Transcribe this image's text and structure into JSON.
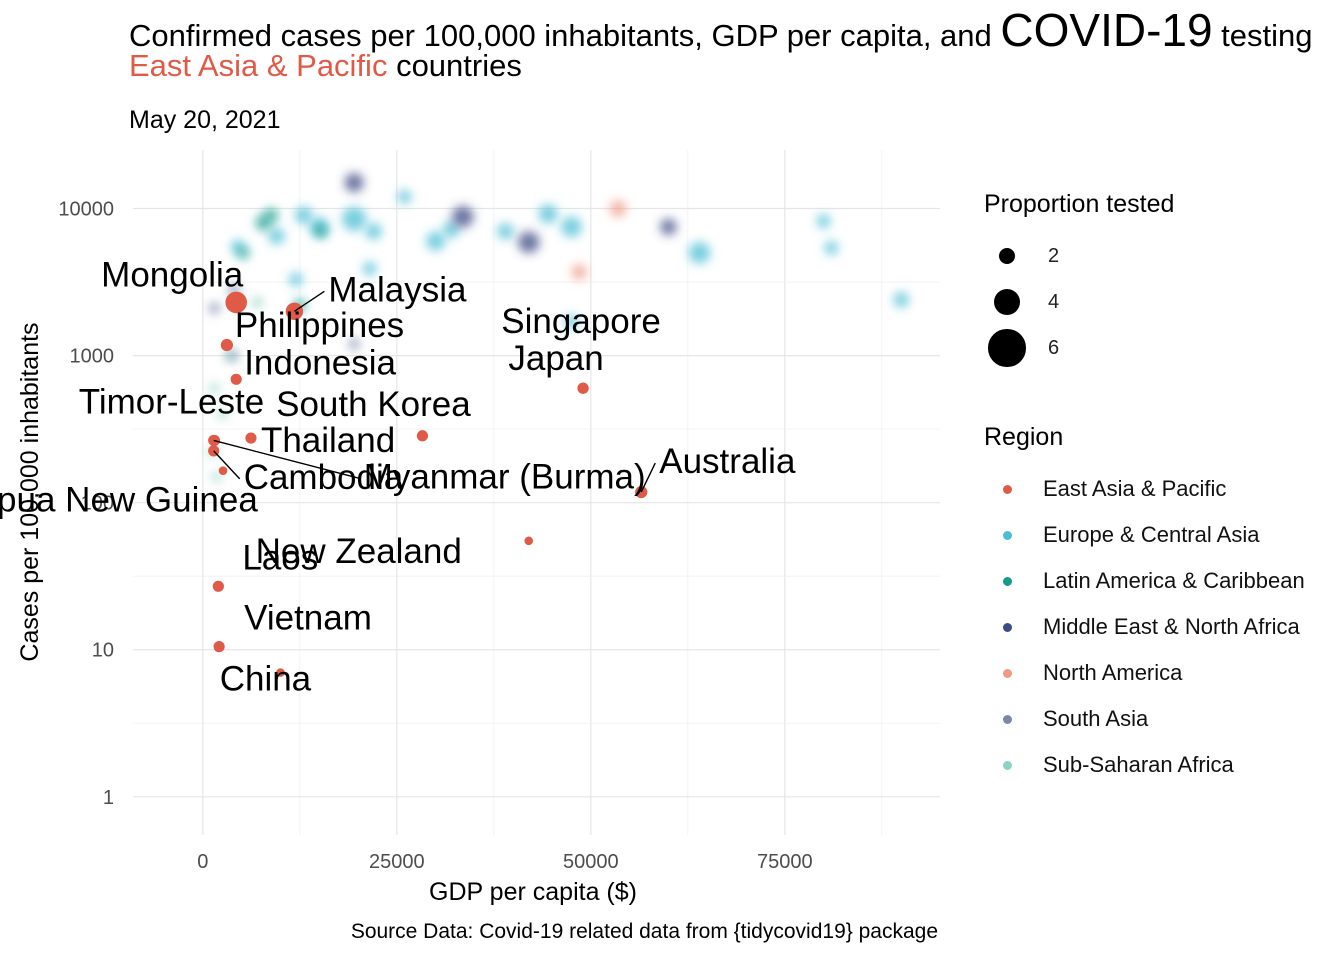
{
  "title": {
    "line1_a": "Confirmed cases per 100,000 inhabitants, GDP per capita, and ",
    "line1_big": "COVID-19",
    "line1_b": " testing",
    "line2_accent": "East Asia & Pacific",
    "line2_rest": " countries"
  },
  "subtitle": "May 20, 2021",
  "caption": "Source Data: Covid-19 related data from {tidycovid19} package",
  "legend": {
    "size_title": "Proportion tested",
    "sizes": [
      {
        "label": "2",
        "value": 2
      },
      {
        "label": "4",
        "value": 4
      },
      {
        "label": "6",
        "value": 6
      }
    ],
    "region_title": "Region",
    "regions": [
      {
        "label": "East Asia & Pacific",
        "color": "#e05b47"
      },
      {
        "label": "Europe & Central Asia",
        "color": "#4dbdd4"
      },
      {
        "label": "Latin America & Caribbean",
        "color": "#159b8c"
      },
      {
        "label": "Middle East & North Africa",
        "color": "#3c4b84"
      },
      {
        "label": "North America",
        "color": "#ee9a84"
      },
      {
        "label": "South Asia",
        "color": "#7b86aa"
      },
      {
        "label": "Sub-Saharan Africa",
        "color": "#8fd2c3"
      }
    ]
  },
  "chart_data": {
    "type": "scatter",
    "xlabel": "GDP per capita ($)",
    "ylabel": "Cases per 100,000 inhabitants",
    "x_scale": "linear",
    "y_scale": "log10",
    "xlim": [
      -9000,
      95000
    ],
    "ylim": [
      0.55,
      25000
    ],
    "x_ticks": [
      0,
      25000,
      50000,
      75000
    ],
    "x_tick_labels": [
      "0",
      "25000",
      "50000",
      "75000"
    ],
    "y_ticks": [
      1,
      10,
      100,
      1000,
      10000
    ],
    "y_tick_labels": [
      "1",
      "10",
      "100",
      "1000",
      "10000"
    ],
    "grid": true,
    "legend_position": "right",
    "highlight_region": "East Asia & Pacific",
    "highlighted": [
      {
        "name": "Mongolia",
        "x": 4300,
        "y": 2300,
        "tested": 3.0
      },
      {
        "name": "Malaysia",
        "x": 11800,
        "y": 2000,
        "tested": 2.2
      },
      {
        "name": "Philippines",
        "x": 3100,
        "y": 1180,
        "tested": 1.2
      },
      {
        "name": "Indonesia",
        "x": 4300,
        "y": 690,
        "tested": 1.0
      },
      {
        "name": "Singapore",
        "x": 49000,
        "y": 600,
        "tested": 1.0
      },
      {
        "name": "Japan",
        "x": 49000,
        "y": 600,
        "tested": 1.0
      },
      {
        "name": "South Korea",
        "x": 28300,
        "y": 285,
        "tested": 1.0
      },
      {
        "name": "Timor-Leste",
        "x": 1500,
        "y": 265,
        "tested": 1.0
      },
      {
        "name": "Thailand",
        "x": 6200,
        "y": 275,
        "tested": 1.0
      },
      {
        "name": "Cambodia",
        "x": 1400,
        "y": 225,
        "tested": 1.0
      },
      {
        "name": "Myanmar (Burma)",
        "x": 1400,
        "y": 265,
        "tested": 1.0
      },
      {
        "name": "Papua New Guinea",
        "x": 2600,
        "y": 165,
        "tested": 0.5
      },
      {
        "name": "New Zealand",
        "x": 42000,
        "y": 55,
        "tested": 0.5
      },
      {
        "name": "Australia",
        "x": 56500,
        "y": 118,
        "tested": 1.2
      },
      {
        "name": "Laos",
        "x": 2000,
        "y": 27,
        "tested": 1.0
      },
      {
        "name": "Vietnam",
        "x": 2100,
        "y": 10.5,
        "tested": 1.0
      },
      {
        "name": "China",
        "x": 10000,
        "y": 7,
        "tested": 0.5
      }
    ],
    "background": [
      {
        "region": "Europe & Central Asia",
        "x": 4500,
        "y": 5500,
        "tested": 1.5
      },
      {
        "region": "Europe & Central Asia",
        "x": 9500,
        "y": 6500,
        "tested": 2.0
      },
      {
        "region": "Europe & Central Asia",
        "x": 13000,
        "y": 9000,
        "tested": 2.2
      },
      {
        "region": "Europe & Central Asia",
        "x": 15000,
        "y": 7500,
        "tested": 2.5
      },
      {
        "region": "Europe & Central Asia",
        "x": 19500,
        "y": 8500,
        "tested": 3.5
      },
      {
        "region": "Europe & Central Asia",
        "x": 22000,
        "y": 7000,
        "tested": 2.0
      },
      {
        "region": "Europe & Central Asia",
        "x": 26000,
        "y": 12000,
        "tested": 1.5
      },
      {
        "region": "Europe & Central Asia",
        "x": 30000,
        "y": 6000,
        "tested": 2.5
      },
      {
        "region": "Europe & Central Asia",
        "x": 32000,
        "y": 7200,
        "tested": 2.0
      },
      {
        "region": "Europe & Central Asia",
        "x": 39000,
        "y": 7000,
        "tested": 2.0
      },
      {
        "region": "Europe & Central Asia",
        "x": 44500,
        "y": 9200,
        "tested": 2.5
      },
      {
        "region": "Europe & Central Asia",
        "x": 47500,
        "y": 7500,
        "tested": 2.8
      },
      {
        "region": "Europe & Central Asia",
        "x": 64000,
        "y": 5000,
        "tested": 3.0
      },
      {
        "region": "Europe & Central Asia",
        "x": 80000,
        "y": 8200,
        "tested": 1.5
      },
      {
        "region": "Europe & Central Asia",
        "x": 81000,
        "y": 5400,
        "tested": 1.5
      },
      {
        "region": "Europe & Central Asia",
        "x": 90000,
        "y": 2400,
        "tested": 1.8
      },
      {
        "region": "Europe & Central Asia",
        "x": 12000,
        "y": 3300,
        "tested": 1.5
      },
      {
        "region": "Europe & Central Asia",
        "x": 21500,
        "y": 3900,
        "tested": 1.5
      },
      {
        "region": "Europe & Central Asia",
        "x": 47500,
        "y": 1700,
        "tested": 1.5
      },
      {
        "region": "Latin America & Caribbean",
        "x": 5200,
        "y": 5000,
        "tested": 1.2
      },
      {
        "region": "Latin America & Caribbean",
        "x": 7800,
        "y": 8000,
        "tested": 1.8
      },
      {
        "region": "Latin America & Caribbean",
        "x": 8800,
        "y": 9000,
        "tested": 1.5
      },
      {
        "region": "Latin America & Caribbean",
        "x": 15200,
        "y": 7000,
        "tested": 1.3
      },
      {
        "region": "Latin America & Caribbean",
        "x": 12500,
        "y": 2200,
        "tested": 1.2
      },
      {
        "region": "Middle East & North Africa",
        "x": 19500,
        "y": 15000,
        "tested": 2.5
      },
      {
        "region": "Middle East & North Africa",
        "x": 33500,
        "y": 8800,
        "tested": 3.0
      },
      {
        "region": "Middle East & North Africa",
        "x": 42000,
        "y": 5900,
        "tested": 3.0
      },
      {
        "region": "Middle East & North Africa",
        "x": 60000,
        "y": 7500,
        "tested": 2.0
      },
      {
        "region": "North America",
        "x": 53500,
        "y": 10000,
        "tested": 2.0
      },
      {
        "region": "North America",
        "x": 48500,
        "y": 3700,
        "tested": 1.8
      },
      {
        "region": "South Asia",
        "x": 4000,
        "y": 2800,
        "tested": 1.2
      },
      {
        "region": "South Asia",
        "x": 1500,
        "y": 2100,
        "tested": 1.0
      },
      {
        "region": "South Asia",
        "x": 3800,
        "y": 1000,
        "tested": 1.0
      },
      {
        "region": "South Asia",
        "x": 19500,
        "y": 1200,
        "tested": 1.0
      },
      {
        "region": "Sub-Saharan Africa",
        "x": 1500,
        "y": 600,
        "tested": 0.8
      },
      {
        "region": "Sub-Saharan Africa",
        "x": 2500,
        "y": 400,
        "tested": 0.8
      },
      {
        "region": "Sub-Saharan Africa",
        "x": 1200,
        "y": 220,
        "tested": 0.8
      },
      {
        "region": "Sub-Saharan Africa",
        "x": 1800,
        "y": 150,
        "tested": 0.8
      },
      {
        "region": "Sub-Saharan Africa",
        "x": 3500,
        "y": 1000,
        "tested": 0.8
      },
      {
        "region": "Sub-Saharan Africa",
        "x": 7000,
        "y": 2300,
        "tested": 1.0
      }
    ]
  }
}
